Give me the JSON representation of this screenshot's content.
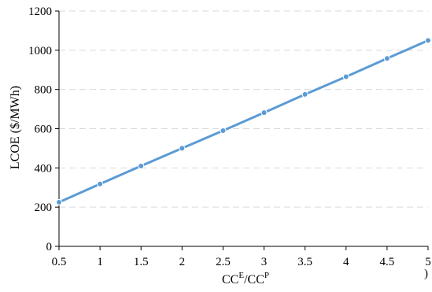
{
  "chart_data": {
    "type": "line",
    "x": [
      0.5,
      1,
      1.5,
      2,
      2.5,
      3,
      3.5,
      4,
      4.5,
      5
    ],
    "x_tick_labels": [
      "0.5",
      "1",
      "1.5",
      "2",
      "2.5",
      "3",
      "3.5",
      "4",
      "4.5",
      "5"
    ],
    "xlim": [
      0.5,
      5
    ],
    "y_ticks": [
      0,
      200,
      400,
      600,
      800,
      1000,
      1200
    ],
    "ylim": [
      0,
      1200
    ],
    "series": [
      {
        "values": [
          225,
          318,
          410,
          500,
          590,
          682,
          775,
          865,
          958,
          1050
        ]
      }
    ],
    "xlabel": {
      "base": "CC",
      "sup1": "E",
      "mid": "/CC",
      "sup2": "P"
    },
    "ylabel": "LCOE ($/MWh)",
    "title": "",
    "grid": "horizontal dashed",
    "line_color": "#5b9bd5",
    "marker_color": "#5b9bd5"
  },
  "corner_label": ")"
}
